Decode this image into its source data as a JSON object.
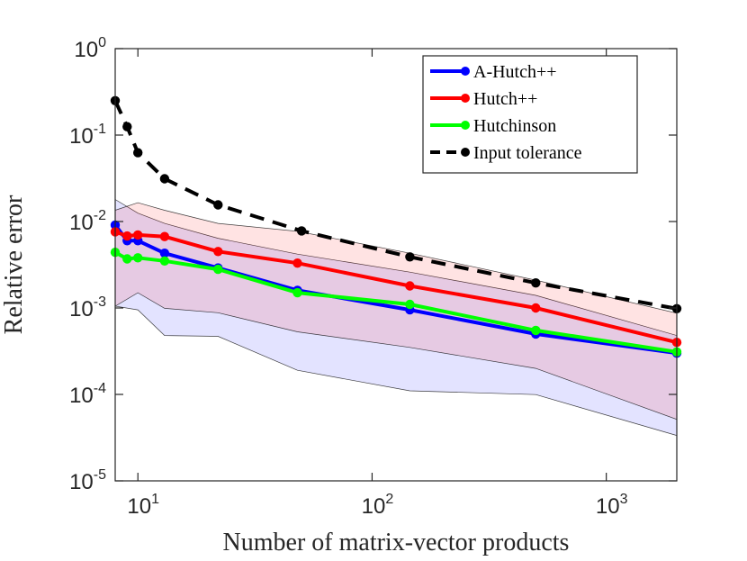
{
  "chart_data": {
    "type": "line",
    "xscale": "log",
    "yscale": "log",
    "xlabel": "Number of matrix-vector products",
    "ylabel": "Relative error",
    "xlim": [
      8,
      2000
    ],
    "ylim": [
      1e-05,
      1
    ],
    "grid": false,
    "legend_position": "top-right",
    "x_ticks": [
      {
        "value": 10,
        "base": "10",
        "exp": "1"
      },
      {
        "value": 100,
        "base": "10",
        "exp": "2"
      },
      {
        "value": 1000,
        "base": "10",
        "exp": "3"
      }
    ],
    "y_ticks": [
      {
        "value": 1,
        "base": "10",
        "exp": "0"
      },
      {
        "value": 0.1,
        "base": "10",
        "exp": "-1"
      },
      {
        "value": 0.01,
        "base": "10",
        "exp": "-2"
      },
      {
        "value": 0.001,
        "base": "10",
        "exp": "-3"
      },
      {
        "value": 0.0001,
        "base": "10",
        "exp": "-4"
      },
      {
        "value": 1e-05,
        "base": "10",
        "exp": "-5"
      }
    ],
    "bands": [
      {
        "name": "A-Hutch++ range",
        "color": "#0000ff",
        "x": [
          8,
          10,
          13,
          22,
          48,
          145,
          500,
          2000
        ],
        "upper": [
          0.018,
          0.0125,
          0.0095,
          0.0064,
          0.0042,
          0.0026,
          0.0014,
          0.00048
        ],
        "lower": [
          0.00105,
          0.00095,
          0.00048,
          0.00047,
          0.00019,
          0.00011,
          9.95e-05,
          3.35e-05
        ]
      },
      {
        "name": "Hutch++ range",
        "color": "#ff0000",
        "x": [
          8,
          10,
          13,
          22,
          48,
          145,
          500,
          2000
        ],
        "upper": [
          0.0135,
          0.0165,
          0.0135,
          0.0095,
          0.0077,
          0.0043,
          0.0021,
          0.00087
        ],
        "lower": [
          0.00105,
          0.0015,
          0.00099,
          0.00088,
          0.00053,
          0.00035,
          0.0002,
          5.15e-05
        ]
      }
    ],
    "series": [
      {
        "name": "A-Hutch++",
        "color": "#0000ff",
        "dashed": false,
        "x": [
          8,
          9,
          10,
          13,
          22,
          48,
          145,
          500,
          2000
        ],
        "values": [
          0.0091,
          0.006,
          0.006,
          0.0043,
          0.0029,
          0.0016,
          0.00095,
          0.0005,
          0.0003
        ]
      },
      {
        "name": "Hutch++",
        "color": "#ff0000",
        "dashed": false,
        "x": [
          8,
          9,
          10,
          13,
          22,
          48,
          145,
          500,
          2000
        ],
        "values": [
          0.0076,
          0.0068,
          0.007,
          0.0067,
          0.0045,
          0.0033,
          0.0018,
          0.001,
          0.0004
        ]
      },
      {
        "name": "Hutchinson",
        "color": "#00ff00",
        "dashed": false,
        "x": [
          8,
          9,
          10,
          13,
          22,
          48,
          145,
          500,
          2000
        ],
        "values": [
          0.0044,
          0.0037,
          0.0038,
          0.0035,
          0.0028,
          0.0015,
          0.0011,
          0.00055,
          0.00031
        ]
      },
      {
        "name": "Input tolerance",
        "color": "#000000",
        "dashed": true,
        "x": [
          8,
          9,
          10,
          13,
          22,
          50,
          145,
          500,
          2000
        ],
        "values": [
          0.25,
          0.125,
          0.0625,
          0.03125,
          0.0156,
          0.0078,
          0.0039,
          0.00195,
          0.00098
        ]
      }
    ]
  }
}
